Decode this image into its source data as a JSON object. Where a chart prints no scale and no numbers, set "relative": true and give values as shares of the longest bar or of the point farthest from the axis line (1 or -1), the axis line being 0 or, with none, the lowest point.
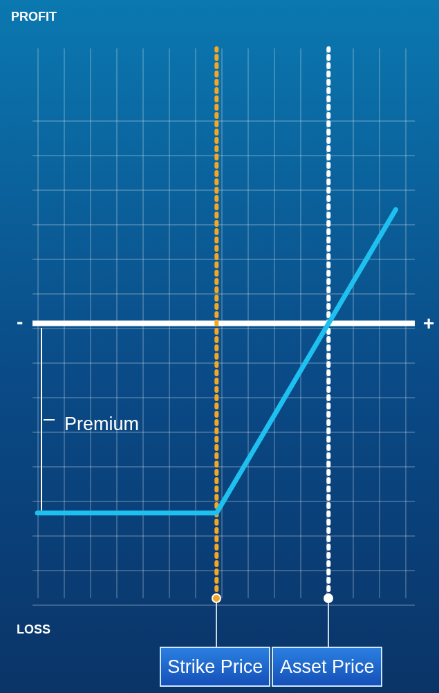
{
  "chart_data": {
    "type": "line",
    "relative": true,
    "categories": [
      null,
      null,
      null,
      null,
      null,
      null,
      null,
      null,
      null,
      null,
      null,
      null,
      null,
      null,
      null,
      null,
      null
    ],
    "series": [
      {
        "color": "#1ec0f0",
        "values": [
          -1,
          -1,
          -1,
          -1,
          -1,
          -1,
          -1,
          -1,
          -1,
          -0.8,
          -0.6,
          -0.4,
          -0.2,
          0,
          0.2,
          0.4,
          0.6
        ]
      }
    ],
    "marker": "none",
    "line_style": "solid",
    "grid": true,
    "annotations": [
      "PROFIT",
      "LOSS",
      "-",
      "+",
      "Premium",
      "Strike Price",
      "Asset Price"
    ]
  }
}
